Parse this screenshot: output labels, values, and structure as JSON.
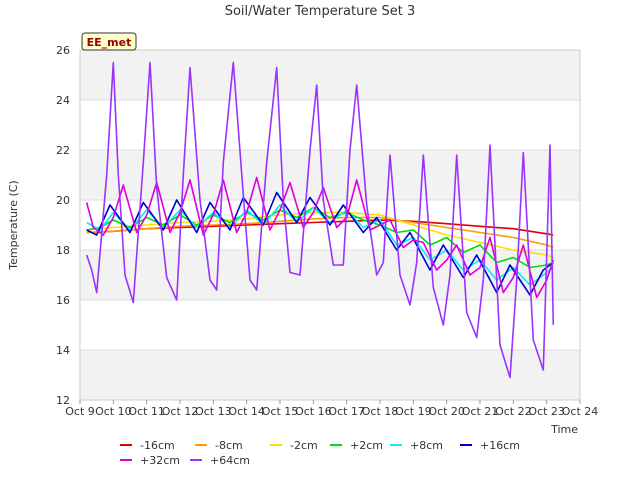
{
  "chart_data": {
    "type": "line",
    "title": "Soil/Water Temperature Set 3",
    "site_label": "EE_met",
    "xlabel": "Time",
    "ylabel": "Temperature (C)",
    "ylim": [
      12,
      26
    ],
    "yticks": [
      12,
      14,
      16,
      18,
      20,
      22,
      24,
      26
    ],
    "xlim": [
      9,
      24
    ],
    "xticks": [
      {
        "v": 9,
        "label": "Oct 9"
      },
      {
        "v": 10,
        "label": "Oct 10"
      },
      {
        "v": 11,
        "label": "Oct 11"
      },
      {
        "v": 12,
        "label": "Oct 12"
      },
      {
        "v": 13,
        "label": "Oct 13"
      },
      {
        "v": 14,
        "label": "Oct 14"
      },
      {
        "v": 15,
        "label": "Oct 15"
      },
      {
        "v": 16,
        "label": "Oct 16"
      },
      {
        "v": 17,
        "label": "Oct 17"
      },
      {
        "v": 18,
        "label": "Oct 18"
      },
      {
        "v": 19,
        "label": "Oct 19"
      },
      {
        "v": 20,
        "label": "Oct 20"
      },
      {
        "v": 21,
        "label": "Oct 21"
      },
      {
        "v": 22,
        "label": "Oct 22"
      },
      {
        "v": 23,
        "label": "Oct 23"
      },
      {
        "v": 24,
        "label": "Oct 24"
      }
    ],
    "grid": true,
    "legend": "bottom",
    "series": [
      {
        "name": "-16cm",
        "color": "#dd0000",
        "x": [
          9.2,
          10,
          11,
          12,
          13,
          14,
          15,
          16,
          17,
          18,
          19,
          20,
          21,
          22,
          23,
          23.2
        ],
        "y": [
          18.7,
          18.75,
          18.85,
          18.9,
          18.95,
          19.0,
          19.05,
          19.1,
          19.15,
          19.2,
          19.15,
          19.05,
          18.95,
          18.85,
          18.65,
          18.6
        ]
      },
      {
        "name": "-8cm",
        "color": "#ff9900",
        "x": [
          9.2,
          10,
          11,
          12,
          13,
          14,
          15,
          16,
          17,
          18,
          19,
          20,
          21,
          22,
          23,
          23.2
        ],
        "y": [
          18.7,
          18.75,
          18.85,
          18.95,
          19.0,
          19.05,
          19.15,
          19.25,
          19.3,
          19.3,
          19.1,
          18.9,
          18.7,
          18.5,
          18.2,
          18.1
        ]
      },
      {
        "name": "-2cm",
        "color": "#ffdd00",
        "x": [
          9.2,
          10,
          11,
          12,
          13,
          14,
          15,
          16,
          17,
          18,
          19,
          20,
          21,
          22,
          23,
          23.2
        ],
        "y": [
          18.8,
          18.9,
          19.0,
          19.1,
          19.15,
          19.25,
          19.4,
          19.5,
          19.5,
          19.4,
          19.0,
          18.6,
          18.3,
          18.0,
          17.8,
          17.7
        ]
      },
      {
        "name": "+2cm",
        "color": "#00dd00",
        "x": [
          9.2,
          9.6,
          10.0,
          10.5,
          11.0,
          11.5,
          12.0,
          12.5,
          13.0,
          13.5,
          14.0,
          14.5,
          15.0,
          15.5,
          16.0,
          16.5,
          17.0,
          17.5,
          18.0,
          18.5,
          19.0,
          19.5,
          20.0,
          20.5,
          21.0,
          21.5,
          22.0,
          22.5,
          23.0,
          23.2
        ],
        "y": [
          18.8,
          18.9,
          19.2,
          18.9,
          19.3,
          19.0,
          19.4,
          19.0,
          19.4,
          19.1,
          19.5,
          19.2,
          19.6,
          19.3,
          19.7,
          19.3,
          19.5,
          19.2,
          19.0,
          18.7,
          18.8,
          18.2,
          18.5,
          17.9,
          18.2,
          17.5,
          17.7,
          17.3,
          17.4,
          17.5
        ]
      },
      {
        "name": "+8cm",
        "color": "#00eeff",
        "x": [
          9.2,
          9.6,
          10.0,
          10.5,
          11.0,
          11.5,
          12.0,
          12.5,
          13.0,
          13.5,
          14.0,
          14.5,
          15.0,
          15.5,
          16.0,
          16.5,
          17.0,
          17.5,
          18.0,
          18.5,
          19.0,
          19.5,
          20.0,
          20.5,
          21.0,
          21.5,
          22.0,
          22.5,
          23.0,
          23.2
        ],
        "y": [
          19.1,
          18.8,
          19.5,
          18.8,
          19.6,
          18.9,
          19.6,
          18.9,
          19.5,
          18.9,
          19.6,
          19.0,
          19.8,
          19.1,
          19.7,
          19.1,
          19.6,
          18.9,
          19.2,
          18.2,
          18.5,
          17.6,
          18.0,
          17.2,
          17.6,
          16.8,
          17.3,
          16.6,
          17.1,
          17.3
        ]
      },
      {
        "name": "+16cm",
        "color": "#0000cc",
        "x": [
          9.2,
          9.5,
          9.9,
          10.5,
          10.9,
          11.5,
          11.9,
          12.5,
          12.9,
          13.5,
          13.9,
          14.5,
          14.9,
          15.5,
          15.9,
          16.5,
          16.9,
          17.5,
          17.9,
          18.5,
          18.9,
          19.5,
          19.9,
          20.5,
          20.9,
          21.5,
          21.9,
          22.5,
          22.9,
          23.2
        ],
        "y": [
          18.8,
          18.6,
          19.8,
          18.7,
          19.9,
          18.8,
          20.0,
          18.7,
          19.9,
          18.8,
          20.1,
          19.0,
          20.3,
          19.1,
          20.1,
          19.0,
          19.8,
          18.7,
          19.3,
          18.0,
          18.7,
          17.2,
          18.2,
          16.9,
          17.8,
          16.3,
          17.4,
          16.2,
          17.2,
          17.5
        ]
      },
      {
        "name": "+32cm",
        "color": "#dd00dd",
        "x": [
          9.2,
          9.4,
          9.7,
          10.0,
          10.3,
          10.7,
          11.0,
          11.3,
          11.7,
          12.0,
          12.3,
          12.7,
          13.0,
          13.3,
          13.7,
          14.0,
          14.3,
          14.7,
          15.0,
          15.3,
          15.7,
          16.0,
          16.3,
          16.7,
          17.0,
          17.3,
          17.7,
          18.0,
          18.3,
          18.7,
          19.0,
          19.3,
          19.7,
          20.0,
          20.3,
          20.7,
          21.0,
          21.3,
          21.7,
          22.0,
          22.3,
          22.7,
          23.0,
          23.2
        ],
        "y": [
          19.9,
          18.9,
          18.6,
          19.3,
          20.6,
          18.7,
          19.4,
          20.7,
          18.7,
          19.5,
          20.8,
          18.6,
          19.4,
          20.8,
          18.7,
          19.5,
          20.9,
          18.8,
          19.6,
          20.7,
          18.9,
          19.5,
          20.5,
          18.9,
          19.3,
          20.8,
          18.8,
          19.0,
          19.2,
          18.1,
          18.4,
          18.3,
          17.2,
          17.6,
          18.2,
          17.0,
          17.3,
          18.5,
          16.3,
          16.9,
          18.2,
          16.1,
          16.8,
          17.6
        ]
      },
      {
        "name": "+64cm",
        "color": "#9933ff",
        "x": [
          9.2,
          9.35,
          9.5,
          9.8,
          10.0,
          10.15,
          10.35,
          10.6,
          10.9,
          11.1,
          11.3,
          11.6,
          11.9,
          12.1,
          12.3,
          12.6,
          12.9,
          13.1,
          13.3,
          13.6,
          13.9,
          14.1,
          14.3,
          14.6,
          14.9,
          15.1,
          15.3,
          15.6,
          15.9,
          16.1,
          16.3,
          16.6,
          16.9,
          17.1,
          17.3,
          17.6,
          17.9,
          18.1,
          18.3,
          18.6,
          18.9,
          19.1,
          19.3,
          19.6,
          19.9,
          20.1,
          20.3,
          20.6,
          20.9,
          21.1,
          21.3,
          21.6,
          21.9,
          22.1,
          22.3,
          22.6,
          22.9,
          23.1,
          23.2
        ],
        "y": [
          17.8,
          17.2,
          16.3,
          21.0,
          25.5,
          21.0,
          17.0,
          15.9,
          21.5,
          25.5,
          20.5,
          16.9,
          16.0,
          21.0,
          25.3,
          20.0,
          16.8,
          16.4,
          21.5,
          25.5,
          20.2,
          16.8,
          16.4,
          21.5,
          25.3,
          20.0,
          17.1,
          17.0,
          22.0,
          24.6,
          20.0,
          17.4,
          17.4,
          22.0,
          24.6,
          19.8,
          17.0,
          17.5,
          21.8,
          17.0,
          15.8,
          17.5,
          21.8,
          16.5,
          15.0,
          17.0,
          21.8,
          15.5,
          14.5,
          16.8,
          22.2,
          14.2,
          12.9,
          16.8,
          21.9,
          14.4,
          13.2,
          22.2,
          15.0
        ]
      }
    ]
  }
}
